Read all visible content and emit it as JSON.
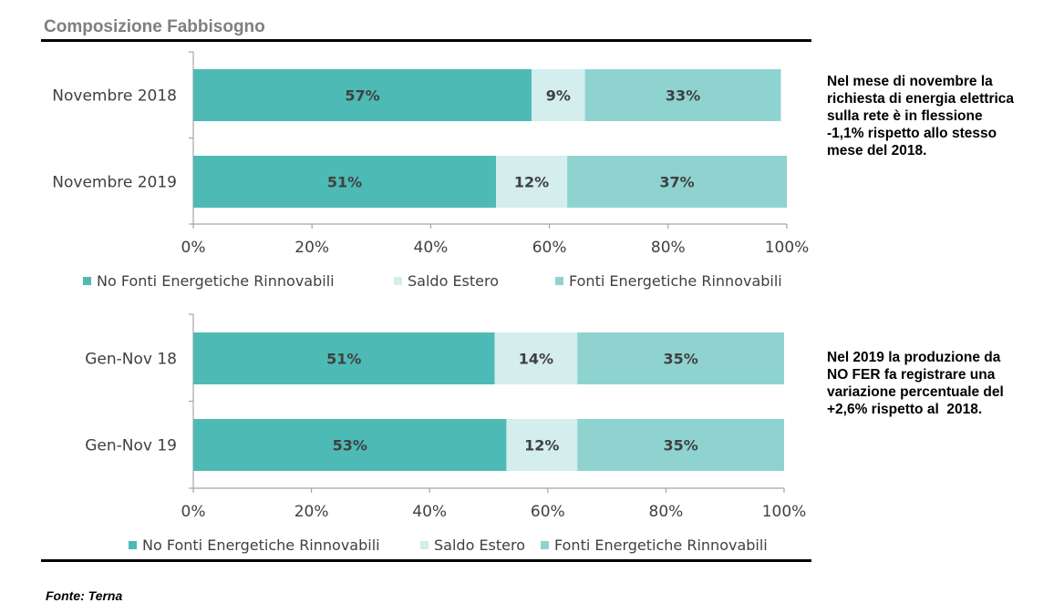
{
  "title": "Composizione Fabbisogno",
  "source": "Fonte: Terna",
  "colors": {
    "no_fer": "#4ebab5",
    "saldo_estero": "#d3eeec",
    "fer": "#8fd3d1",
    "axis": "#a6a6a6",
    "rule": "#000000",
    "title": "#7f7f7f"
  },
  "notes": [
    {
      "lines": [
        "Nel mese di novembre la",
        "richiesta di energia elettrica",
        "sulla rete è in flessione",
        "-1,1% rispetto allo stesso",
        "mese del 2018."
      ]
    },
    {
      "lines": [
        "Nel 2019 la produzione da",
        "NO FER fa registrare una",
        "variazione percentuale del",
        "+2,6% rispetto al  2018."
      ]
    }
  ],
  "chart_data": [
    {
      "type": "bar",
      "orientation": "horizontal",
      "stacked": true,
      "categories": [
        "Novembre 2018",
        "Novembre 2019"
      ],
      "series": [
        {
          "name": "No Fonti Energetiche Rinnovabili",
          "values": [
            57,
            51
          ],
          "labels": [
            "57%",
            "51%"
          ],
          "color": "#4ebab5"
        },
        {
          "name": "Saldo Estero",
          "values": [
            9,
            12
          ],
          "labels": [
            "9%",
            "12%"
          ],
          "color": "#d3eeec"
        },
        {
          "name": "Fonti Energetiche Rinnovabili",
          "values": [
            33,
            37
          ],
          "labels": [
            "33%",
            "37%"
          ],
          "color": "#8fd3d1"
        }
      ],
      "xlim": [
        0,
        100
      ],
      "xticks": [
        "0%",
        "20%",
        "40%",
        "60%",
        "80%",
        "100%"
      ],
      "legend": "bottom",
      "grid": false
    },
    {
      "type": "bar",
      "orientation": "horizontal",
      "stacked": true,
      "categories": [
        "Gen-Nov 18",
        "Gen-Nov 19"
      ],
      "series": [
        {
          "name": "No Fonti Energetiche Rinnovabili",
          "values": [
            51,
            53
          ],
          "labels": [
            "51%",
            "53%"
          ],
          "color": "#4ebab5"
        },
        {
          "name": "Saldo Estero",
          "values": [
            14,
            12
          ],
          "labels": [
            "14%",
            "12%"
          ],
          "color": "#d3eeec"
        },
        {
          "name": "Fonti Energetiche Rinnovabili",
          "values": [
            35,
            35
          ],
          "labels": [
            "35%",
            "35%"
          ],
          "color": "#8fd3d1"
        }
      ],
      "xlim": [
        0,
        100
      ],
      "xticks": [
        "0%",
        "20%",
        "40%",
        "60%",
        "80%",
        "100%"
      ],
      "legend": "bottom",
      "grid": false
    }
  ]
}
